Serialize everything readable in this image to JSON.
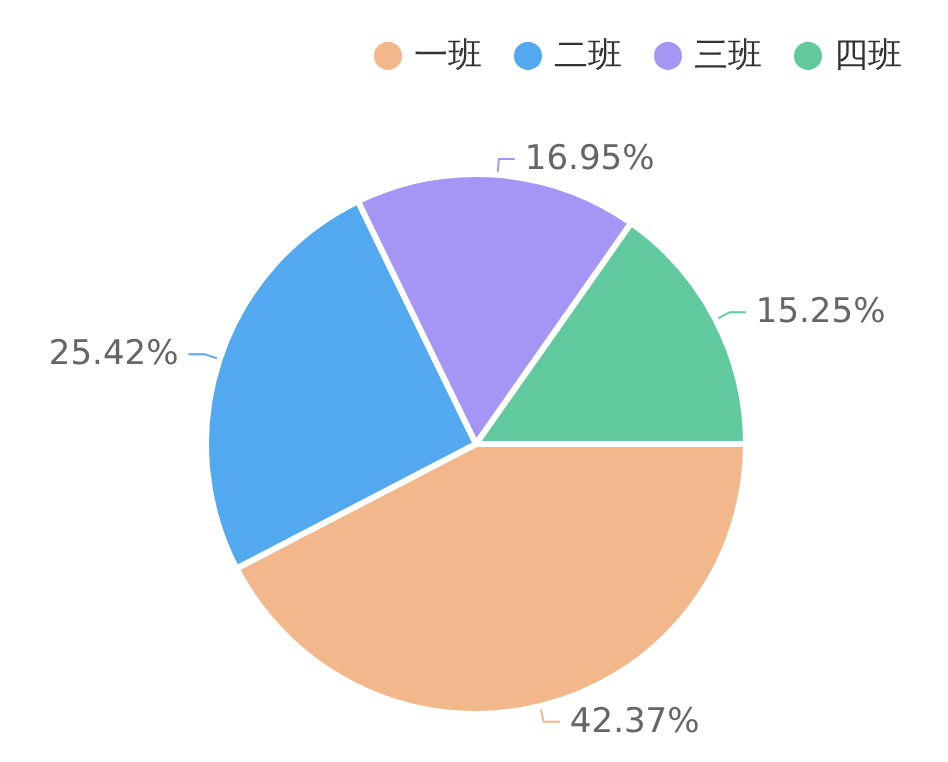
{
  "chart_data": {
    "type": "pie",
    "categories": [
      "一班",
      "二班",
      "三班",
      "四班"
    ],
    "values": [
      42.37,
      25.42,
      16.95,
      15.25
    ],
    "value_labels": [
      "42.37%",
      "25.42%",
      "16.95%",
      "15.25%"
    ],
    "colors": [
      "#f3b78c",
      "#52a9f0",
      "#a596f6",
      "#60c99e"
    ],
    "legend": "top right"
  }
}
